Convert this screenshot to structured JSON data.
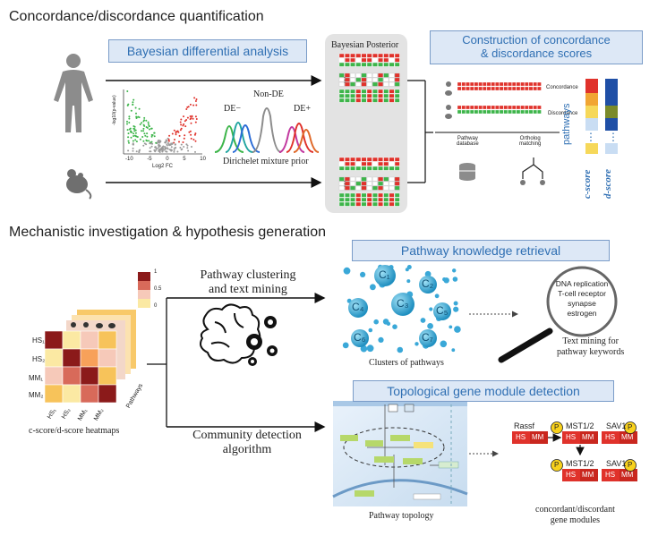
{
  "section1": {
    "title": "Concordance/discordance quantification",
    "bayes_box": "Bayesian differential analysis",
    "posterior_title": "Bayesian Posterior",
    "construction_box_line1": "Construction of concordance",
    "construction_box_line2": "& discordance scores",
    "de_minus": "DE−",
    "non_de": "Non-DE",
    "de_plus": "DE+",
    "mixture_caption": "Dirichelet mixture prior",
    "volcano_ylabel": "-log10(p-value)",
    "volcano_xlabel": "Log2 FC",
    "volcano_xticks": [
      "-10",
      "-5",
      "0",
      "5",
      "10"
    ],
    "concordance_label": "Concordance",
    "discordance_label": "Discordance",
    "pathway_db_line1": "Pathway",
    "pathway_db_line2": "database",
    "ortholog_line1": "Ortholog",
    "ortholog_line2": "matching",
    "pathways_label": "pathways",
    "c_score": "c-score",
    "d_score": "d-score",
    "ellipsis": "⋮"
  },
  "section2": {
    "title": "Mechanistic investigation & hypothesis generation",
    "clustering_line1": "Pathway clustering",
    "clustering_line2": "and text mining",
    "community_line1": "Community detection",
    "community_line2": "algorithm",
    "heatmap_caption": "c-score/d-score heatmaps",
    "heatmap_rows": [
      "HS₁",
      "HS₂",
      "MM₁",
      "MM₂"
    ],
    "heatmap_cols": [
      "HS₁",
      "HS₂",
      "MM₁",
      "MM₂"
    ],
    "heatmap_pathways": "Pathways",
    "colorbar_ticks": [
      "1",
      "0.5",
      "0"
    ],
    "knowledge_box": "Pathway knowledge retrieval",
    "clusters": [
      "C₁",
      "C₂",
      "C₃",
      "C₄",
      "C₅",
      "C₆",
      "C₇"
    ],
    "clusters_caption": "Clusters of pathways",
    "lens_terms": [
      "DNA replication",
      "T-cell receptor",
      "synapse",
      "estrogen"
    ],
    "text_mining_line1": "Text mining for",
    "text_mining_line2": "pathway keywords",
    "topology_box": "Topological gene module detection",
    "topology_caption": "Pathway topology",
    "module_caption_line1": "concordant/discordant",
    "module_caption_line2": "gene modules",
    "genes": [
      "Rassf",
      "MST1/2",
      "SAV1",
      "MST1/2",
      "SAV1"
    ],
    "hs": "HS",
    "mm": "MM",
    "p": "P"
  },
  "colors": {
    "accent_blue": "#2f6fb3",
    "box_fill": "#dde8f6",
    "red": "#e0322b",
    "green": "#3db54a",
    "posterior_bg": "#e3e3e3"
  }
}
